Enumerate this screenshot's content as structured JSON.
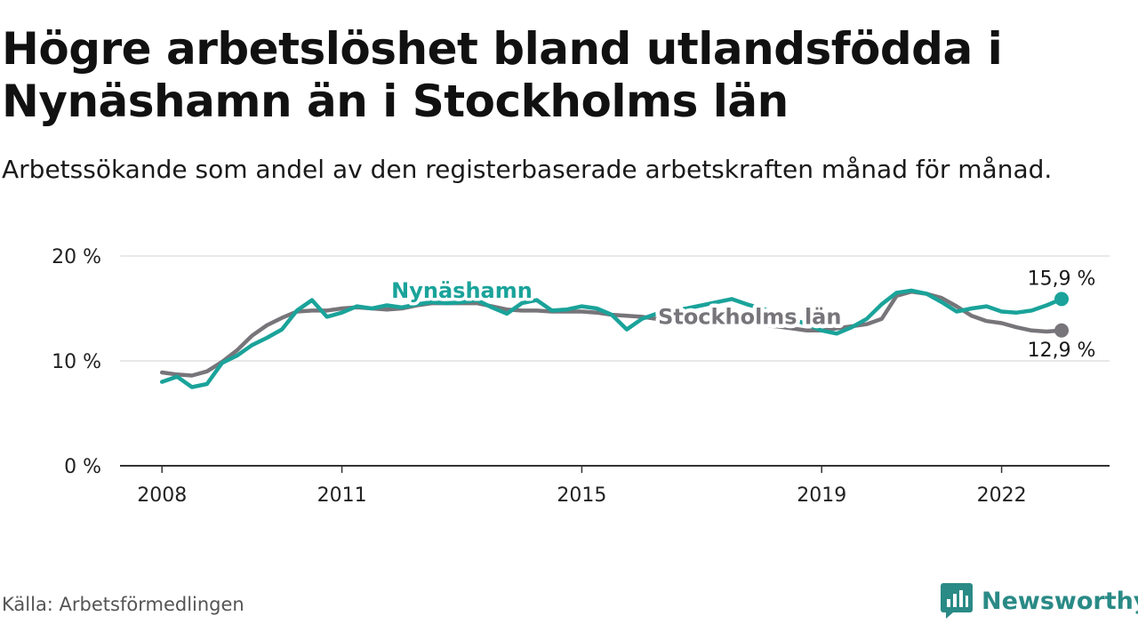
{
  "title": "Högre arbetslöshet bland utlandsfödda i Nynäshamn än i Stockholms län",
  "subtitle": "Arbetssökande som andel av den registerbaserade arbetskraften månad för månad.",
  "source": "Källa: Arbetsförmedlingen",
  "brand": {
    "name": "Newsworthy",
    "icon": "newsworthy-logo-icon"
  },
  "colors": {
    "nynashamn": "#1aa39a",
    "stockholm": "#77757a",
    "grid": "#d9d9d9",
    "axis": "#333333",
    "brand": "#2a8a86"
  },
  "chart_data": {
    "type": "line",
    "title": "Högre arbetslöshet bland utlandsfödda i Nynäshamn än i Stockholms län",
    "xlabel": "",
    "ylabel": "",
    "ylim": [
      0,
      20
    ],
    "xlim": [
      2007.3,
      2023.8
    ],
    "y_ticks": [
      0,
      10,
      20
    ],
    "y_tick_labels": [
      "0 %",
      "10 %",
      "20 %"
    ],
    "x_ticks": [
      2008,
      2011,
      2015,
      2019,
      2022
    ],
    "x_tick_labels": [
      "2008",
      "2011",
      "2015",
      "2019",
      "2022"
    ],
    "grid": true,
    "series": [
      {
        "name": "Stockholms län",
        "label": "Stockholms län",
        "end_label": "12,9 %",
        "color": "#77757a",
        "x": [
          2008.0,
          2008.25,
          2008.5,
          2008.75,
          2009.0,
          2009.25,
          2009.5,
          2009.75,
          2010.0,
          2010.25,
          2010.5,
          2010.75,
          2011.0,
          2011.25,
          2011.5,
          2011.75,
          2012.0,
          2012.25,
          2012.5,
          2012.75,
          2013.0,
          2013.25,
          2013.5,
          2013.75,
          2014.0,
          2014.25,
          2014.5,
          2014.75,
          2015.0,
          2015.25,
          2015.5,
          2015.75,
          2016.0,
          2016.25,
          2016.5,
          2016.75,
          2017.0,
          2017.25,
          2017.5,
          2017.75,
          2018.0,
          2018.25,
          2018.5,
          2018.75,
          2019.0,
          2019.25,
          2019.5,
          2019.75,
          2020.0,
          2020.25,
          2020.5,
          2020.75,
          2021.0,
          2021.25,
          2021.5,
          2021.75,
          2022.0,
          2022.25,
          2022.5,
          2022.75,
          2023.0
        ],
        "values": [
          8.9,
          8.7,
          8.6,
          9.0,
          9.9,
          11.0,
          12.4,
          13.4,
          14.1,
          14.7,
          14.8,
          14.8,
          15.0,
          15.1,
          15.0,
          14.9,
          15.0,
          15.3,
          15.5,
          15.5,
          15.5,
          15.5,
          15.2,
          14.9,
          14.8,
          14.8,
          14.7,
          14.7,
          14.7,
          14.6,
          14.4,
          14.3,
          14.2,
          14.0,
          13.9,
          13.8,
          13.8,
          13.7,
          13.6,
          13.5,
          13.4,
          13.3,
          13.1,
          12.9,
          12.9,
          13.1,
          13.3,
          13.5,
          14.0,
          16.2,
          16.6,
          16.4,
          16.0,
          15.2,
          14.3,
          13.8,
          13.6,
          13.2,
          12.9,
          12.8,
          12.9
        ]
      },
      {
        "name": "Nynäshamn",
        "label": "Nynäshamn",
        "end_label": "15,9 %",
        "color": "#1aa39a",
        "x": [
          2008.0,
          2008.25,
          2008.5,
          2008.75,
          2009.0,
          2009.25,
          2009.5,
          2009.75,
          2010.0,
          2010.25,
          2010.5,
          2010.75,
          2011.0,
          2011.25,
          2011.5,
          2011.75,
          2012.0,
          2012.25,
          2012.5,
          2012.75,
          2013.0,
          2013.25,
          2013.5,
          2013.75,
          2014.0,
          2014.25,
          2014.5,
          2014.75,
          2015.0,
          2015.25,
          2015.5,
          2015.75,
          2016.0,
          2016.25,
          2016.5,
          2016.75,
          2017.0,
          2017.25,
          2017.5,
          2017.75,
          2018.0,
          2018.25,
          2018.5,
          2018.75,
          2019.0,
          2019.25,
          2019.5,
          2019.75,
          2020.0,
          2020.25,
          2020.5,
          2020.75,
          2021.0,
          2021.25,
          2021.5,
          2021.75,
          2022.0,
          2022.25,
          2022.5,
          2022.75,
          2023.0
        ],
        "values": [
          8.0,
          8.5,
          7.5,
          7.8,
          9.8,
          10.5,
          11.5,
          12.2,
          13.0,
          14.8,
          15.8,
          14.2,
          14.6,
          15.2,
          15.0,
          15.3,
          15.1,
          15.4,
          15.6,
          15.5,
          15.6,
          15.8,
          15.1,
          14.5,
          15.5,
          15.8,
          14.8,
          14.9,
          15.2,
          15.0,
          14.4,
          13.0,
          14.0,
          14.5,
          14.8,
          15.0,
          15.3,
          15.6,
          15.9,
          15.4,
          15.0,
          14.5,
          14.0,
          13.5,
          12.9,
          12.6,
          13.2,
          14.0,
          15.4,
          16.5,
          16.7,
          16.4,
          15.6,
          14.7,
          15.0,
          15.2,
          14.7,
          14.6,
          14.8,
          15.3,
          15.9
        ]
      }
    ],
    "annotations": [
      {
        "text": "Nynäshamn",
        "series": "Nynäshamn"
      },
      {
        "text": "Stockholms län",
        "series": "Stockholms län"
      }
    ]
  }
}
